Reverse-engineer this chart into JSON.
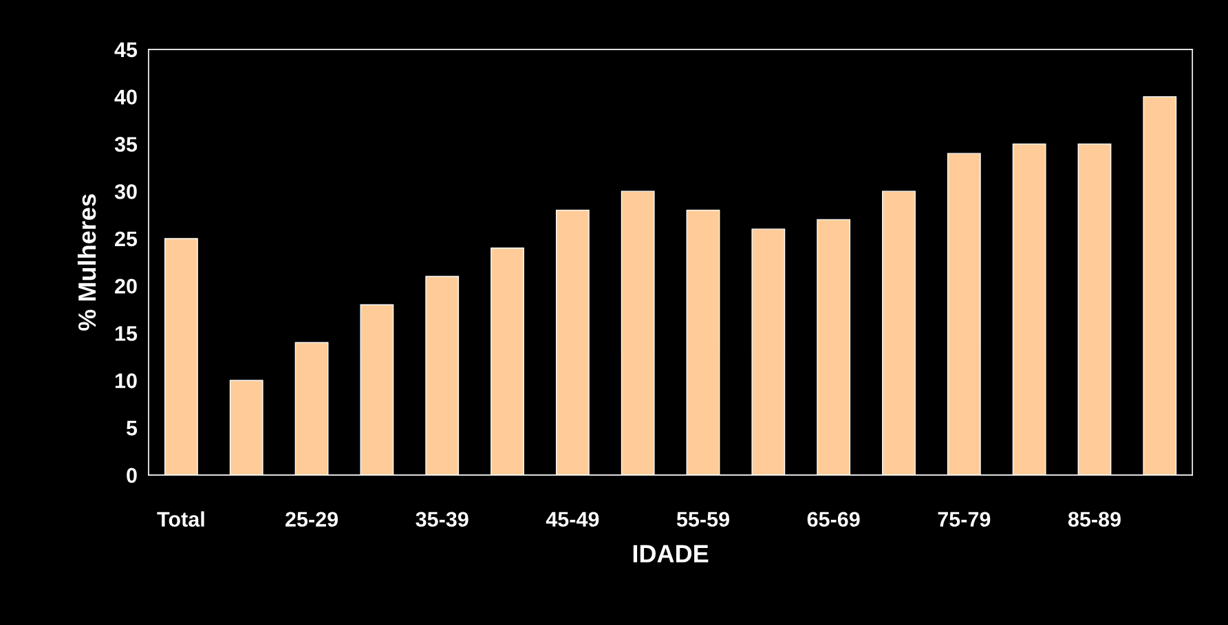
{
  "chart_data": {
    "type": "bar",
    "xlabel": "IDADE",
    "ylabel": "% Mulheres",
    "categories": [
      "Total",
      null,
      "25-29",
      null,
      "35-39",
      null,
      "45-49",
      null,
      "55-59",
      null,
      "65-69",
      null,
      "75-79",
      null,
      "85-89",
      null
    ],
    "values": [
      25,
      10,
      14,
      18,
      21,
      24,
      28,
      30,
      28,
      26,
      27,
      30,
      34,
      35,
      35,
      40
    ],
    "color": "#ffcc99",
    "ylim": [
      0,
      45
    ],
    "yticks": [
      0,
      5,
      10,
      15,
      20,
      25,
      30,
      35,
      40,
      45
    ],
    "grid": false,
    "legend": false
  }
}
